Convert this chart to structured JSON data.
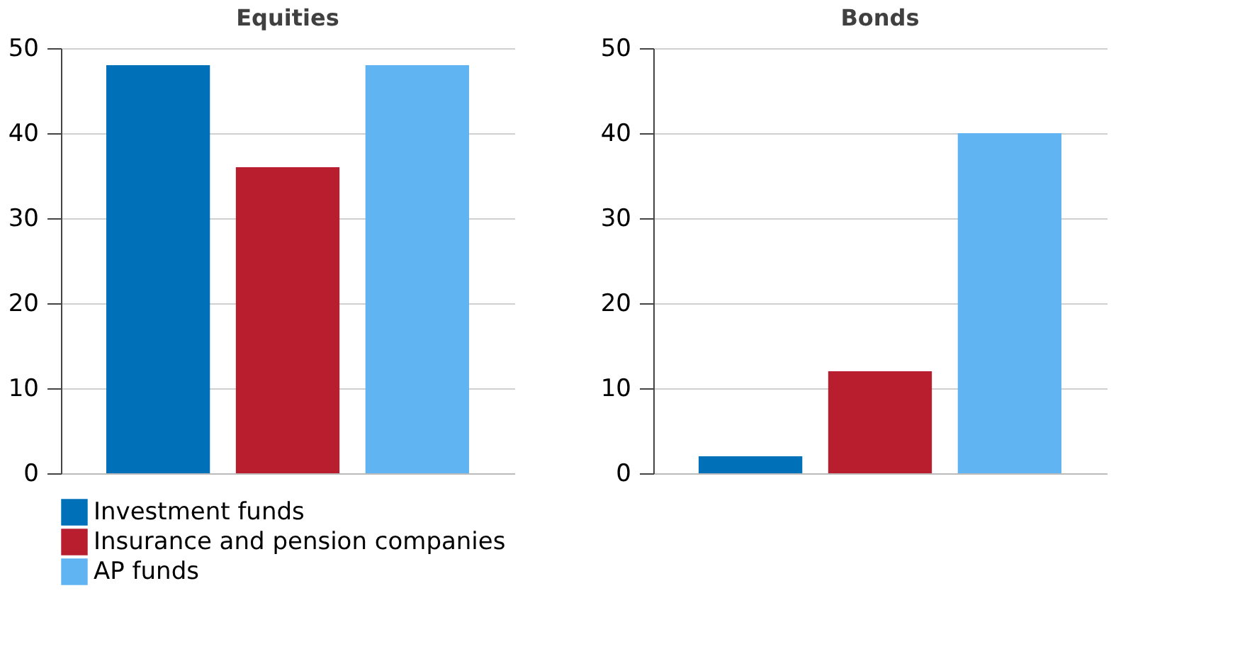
{
  "chart_data": [
    {
      "type": "bar",
      "title": "Equities",
      "categories": [
        null
      ],
      "ylim": [
        0,
        50
      ],
      "yticks": [
        0,
        10,
        20,
        30,
        40,
        50
      ],
      "grid": "y",
      "legend": "bottom",
      "series": [
        {
          "name": "Investment funds",
          "color": "#0070b8",
          "values": [
            48
          ]
        },
        {
          "name": "Insurance and pension companies",
          "color": "#b81e2d",
          "values": [
            36
          ]
        },
        {
          "name": "AP funds",
          "color": "#60b4f2",
          "values": [
            48
          ]
        }
      ]
    },
    {
      "type": "bar",
      "title": "Bonds",
      "categories": [
        null
      ],
      "ylim": [
        0,
        50
      ],
      "yticks": [
        0,
        10,
        20,
        30,
        40,
        50
      ],
      "grid": "y",
      "series": [
        {
          "color": "#0070b8",
          "values": [
            2
          ]
        },
        {
          "color": "#b81e2d",
          "values": [
            12
          ]
        },
        {
          "color": "#60b4f2",
          "values": [
            40
          ]
        }
      ]
    }
  ]
}
